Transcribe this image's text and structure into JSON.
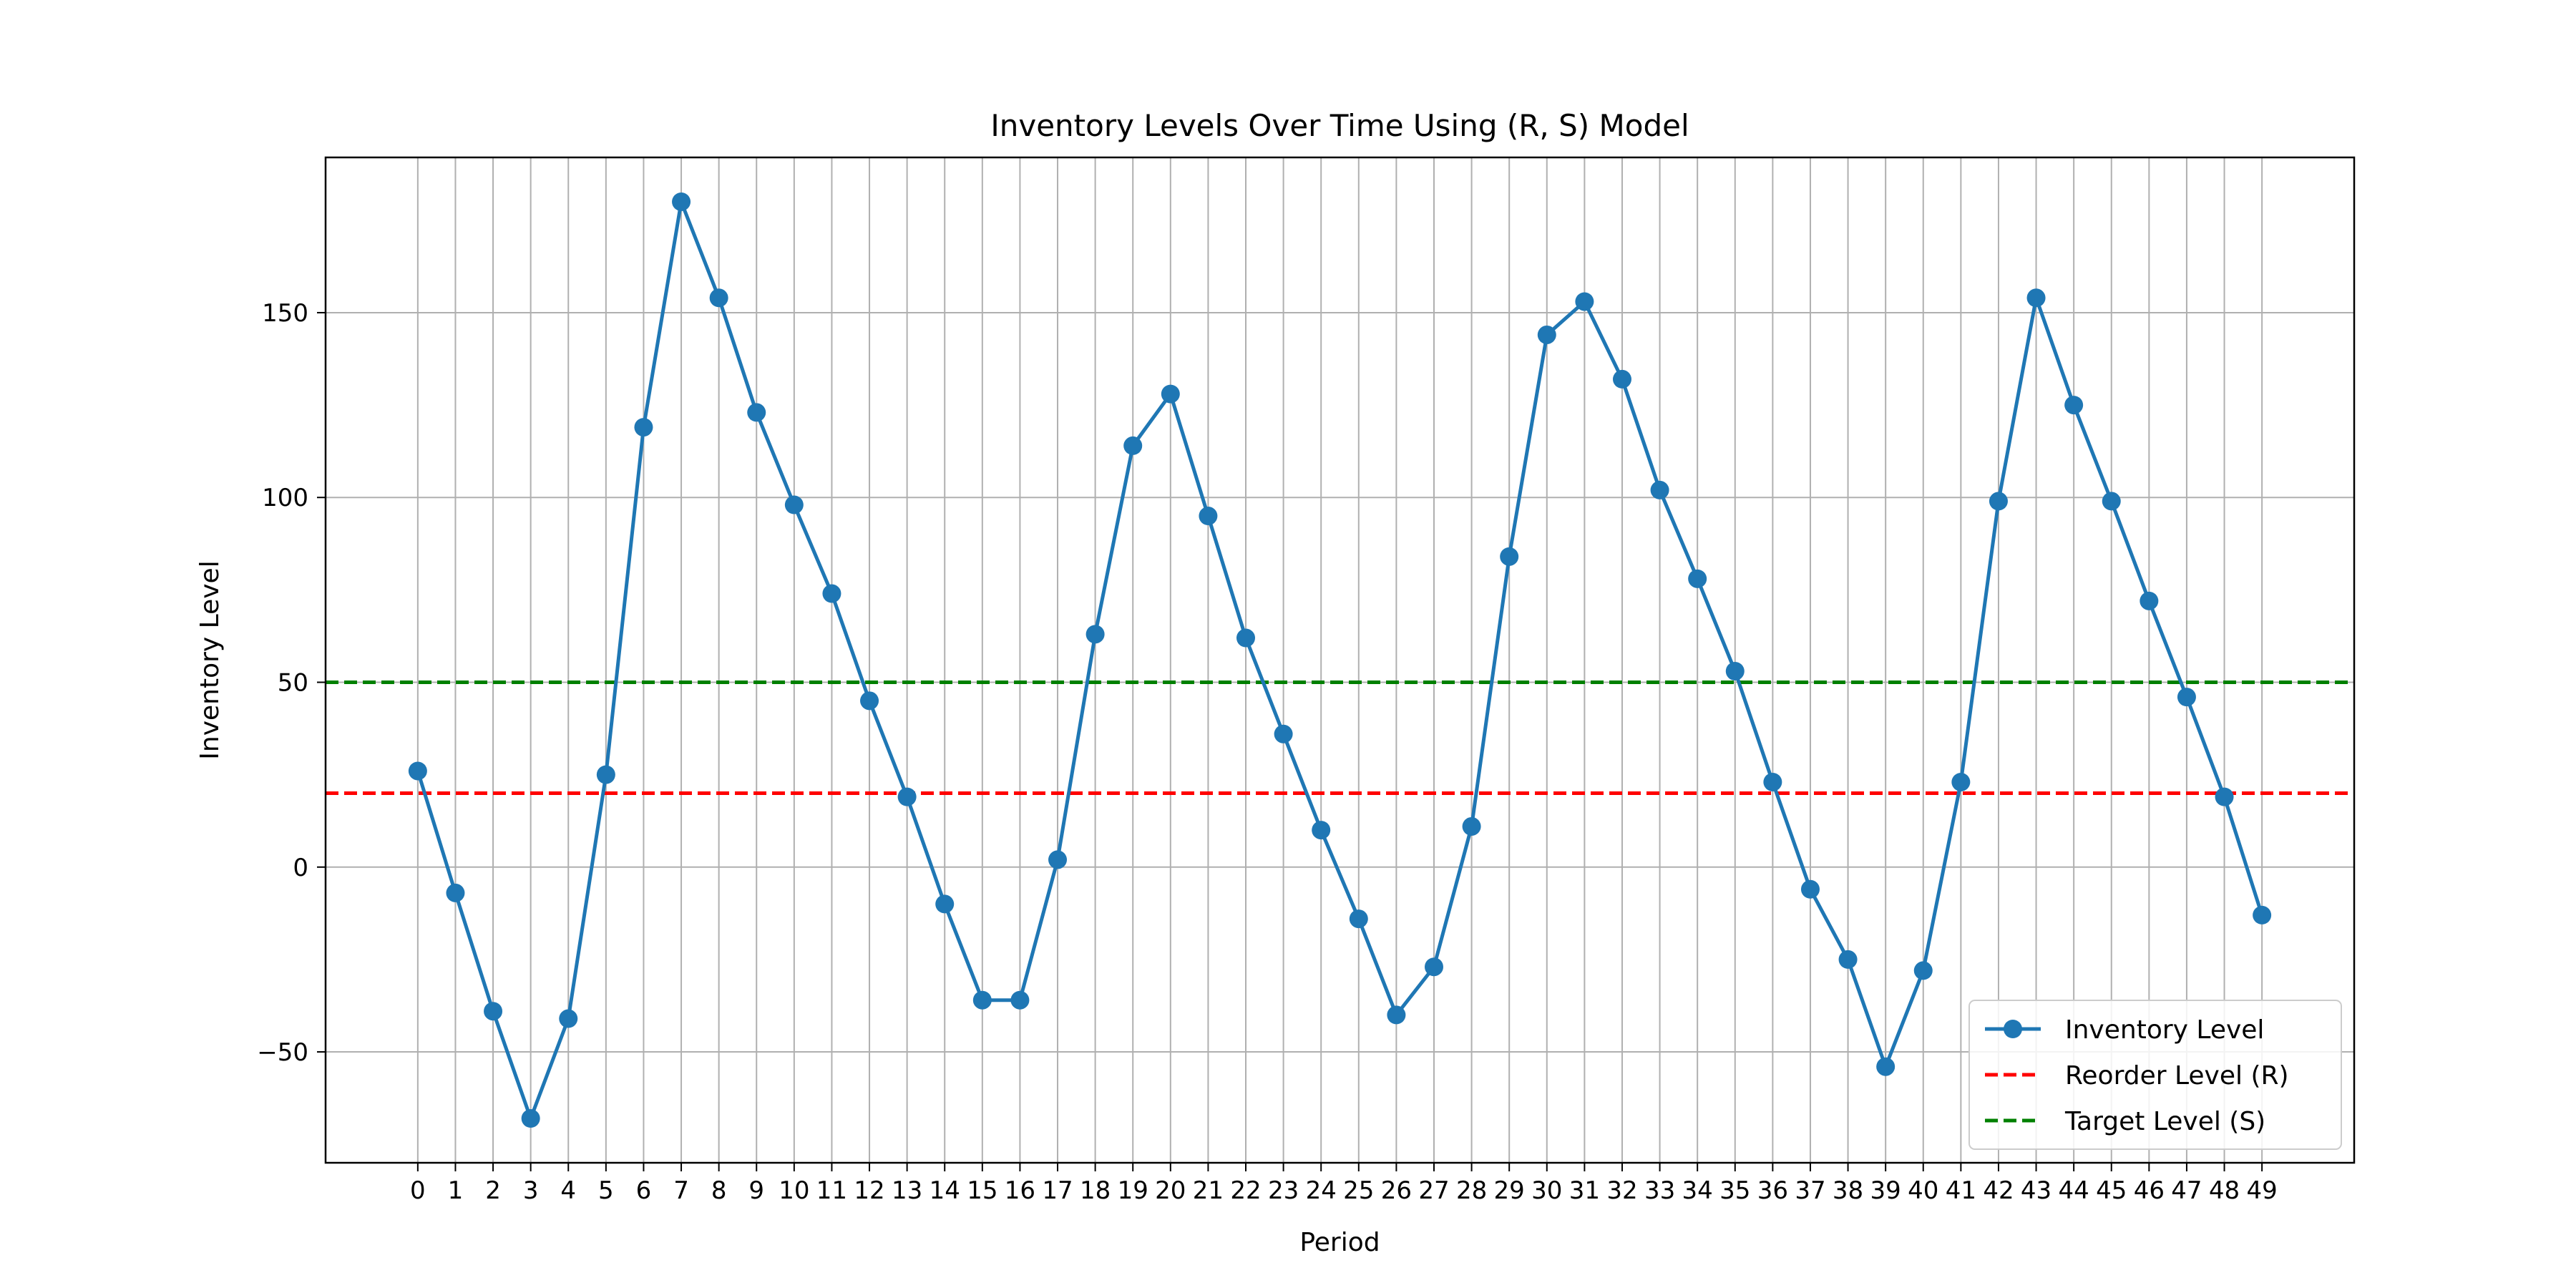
{
  "chart_data": {
    "type": "line",
    "title": "Inventory Levels Over Time Using (R, S) Model",
    "xlabel": "Period",
    "ylabel": "Inventory Level",
    "xlim": [
      -2.45,
      51.45
    ],
    "ylim": [
      -80,
      192
    ],
    "x_ticks": [
      0,
      1,
      2,
      3,
      4,
      5,
      6,
      7,
      8,
      9,
      10,
      11,
      12,
      13,
      14,
      15,
      16,
      17,
      18,
      19,
      20,
      21,
      22,
      23,
      24,
      25,
      26,
      27,
      28,
      29,
      30,
      31,
      32,
      33,
      34,
      35,
      36,
      37,
      38,
      39,
      40,
      41,
      42,
      43,
      44,
      45,
      46,
      47,
      48,
      49
    ],
    "y_ticks": [
      -50,
      0,
      50,
      100,
      150
    ],
    "y_tick_labels": [
      "−50",
      "0",
      "50",
      "100",
      "150"
    ],
    "grid": true,
    "legend_position": "lower right",
    "series": [
      {
        "name": "Inventory Level",
        "style": "solid-line-with-markers",
        "color": "#1f77b4",
        "x": [
          0,
          1,
          2,
          3,
          4,
          5,
          6,
          7,
          8,
          9,
          10,
          11,
          12,
          13,
          14,
          15,
          16,
          17,
          18,
          19,
          20,
          21,
          22,
          23,
          24,
          25,
          26,
          27,
          28,
          29,
          30,
          31,
          32,
          33,
          34,
          35,
          36,
          37,
          38,
          39,
          40,
          41,
          42,
          43,
          44,
          45,
          46,
          47,
          48,
          49
        ],
        "y": [
          26,
          -7,
          -39,
          -68,
          -41,
          25,
          119,
          180,
          154,
          123,
          98,
          74,
          45,
          19,
          -10,
          -36,
          -36,
          2,
          63,
          114,
          128,
          95,
          62,
          36,
          10,
          -14,
          -40,
          -27,
          11,
          84,
          144,
          153,
          132,
          102,
          78,
          53,
          23,
          -6,
          -25,
          -54,
          -28,
          23,
          99,
          154,
          125,
          99,
          72,
          46,
          19,
          -13
        ]
      }
    ],
    "reference_lines": [
      {
        "name": "Reorder Level (R)",
        "y": 20,
        "color": "#ff0000",
        "style": "dashed"
      },
      {
        "name": "Target Level (S)",
        "y": 50,
        "color": "#008000",
        "style": "dashed"
      }
    ]
  }
}
